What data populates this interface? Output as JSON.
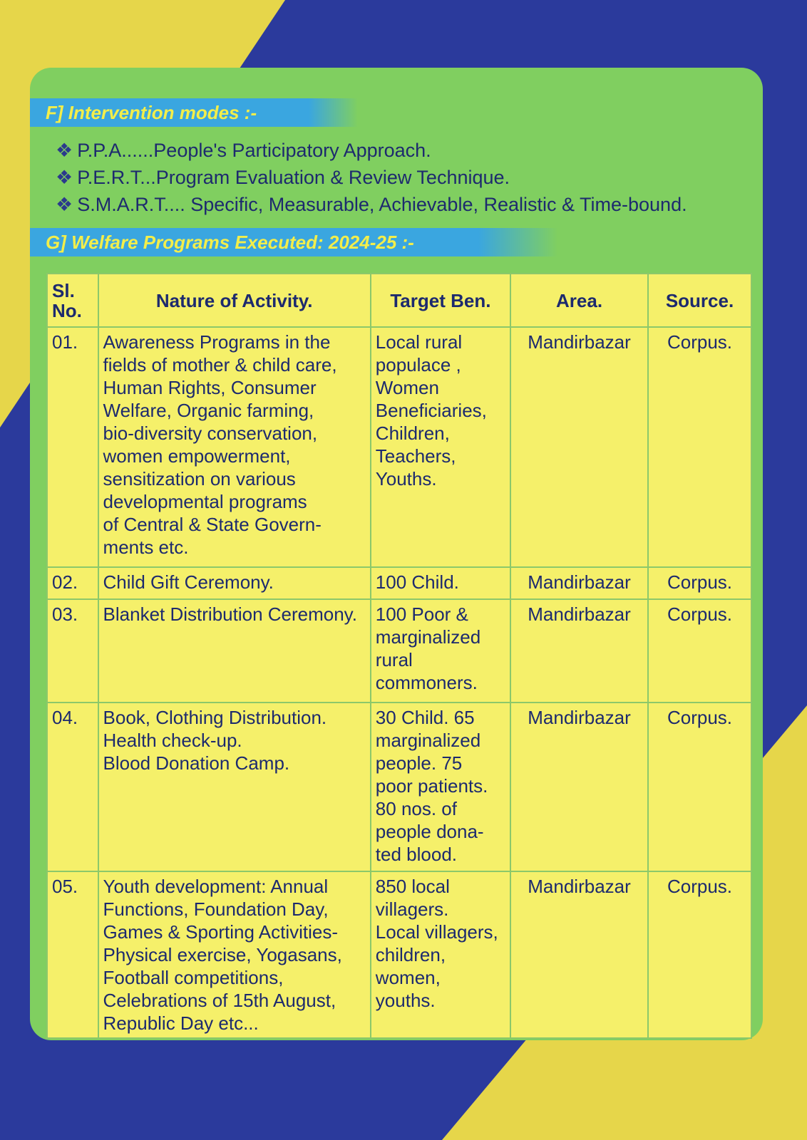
{
  "colors": {
    "background_yellow": "#e6d64a",
    "background_blue": "#2b3a9c",
    "panel_green": "#80cf60",
    "table_yellow": "#f5f06a",
    "banner_blue": "#3aa6e0",
    "heading_text": "#f3ee4a"
  },
  "section_f": {
    "title": "F] Intervention modes :-",
    "items": [
      "P.P.A......People's Participatory Approach.",
      "P.E.R.T...Program Evaluation & Review Technique.",
      "S.M.A.R.T.... Specific, Measurable, Achievable, Realistic & Time-bound."
    ],
    "bullet_icon": "diamond-cluster"
  },
  "section_g": {
    "title": "G] Welfare Programs Executed: 2024-25 :-"
  },
  "table": {
    "headers": [
      "Sl.\nNo.",
      "Nature of Activity.",
      "Target Ben.",
      "Area.",
      "Source."
    ],
    "rows": [
      [
        "01.",
        "Awareness Programs in the\nfields of mother & child care,\nHuman Rights, Consumer\nWelfare, Organic farming,\nbio-diversity conservation,\nwomen empowerment,\nsensitization on various\ndevelopmental programs\nof Central & State Govern-\nments etc.",
        "Local rural\npopulace ,\nWomen\nBeneficiaries,\nChildren,\nTeachers,\nYouths.",
        "Mandirbazar",
        "Corpus."
      ],
      [
        "02.",
        "Child Gift Ceremony.",
        "100 Child.",
        "Mandirbazar",
        "Corpus."
      ],
      [
        "03.",
        "Blanket Distribution Ceremony.",
        "100 Poor &\nmarginalized\nrural\ncommoners.",
        "Mandirbazar",
        "Corpus."
      ],
      [
        "04.",
        "Book, Clothing Distribution.\nHealth check-up.\nBlood Donation Camp.",
        "30 Child. 65\nmarginalized\npeople. 75\npoor patients.\n80 nos. of\npeople dona-\nted blood.",
        "Mandirbazar",
        "Corpus."
      ],
      [
        "05.",
        "Youth development: Annual\nFunctions, Foundation Day,\nGames & Sporting Activities-\nPhysical exercise, Yogasans,\nFootball  competitions,\nCelebrations of 15th August,\nRepublic Day etc...",
        "850 local\nvillagers.\nLocal villagers,\nchildren,\nwomen,\nyouths.",
        "Mandirbazar",
        "Corpus."
      ]
    ]
  }
}
